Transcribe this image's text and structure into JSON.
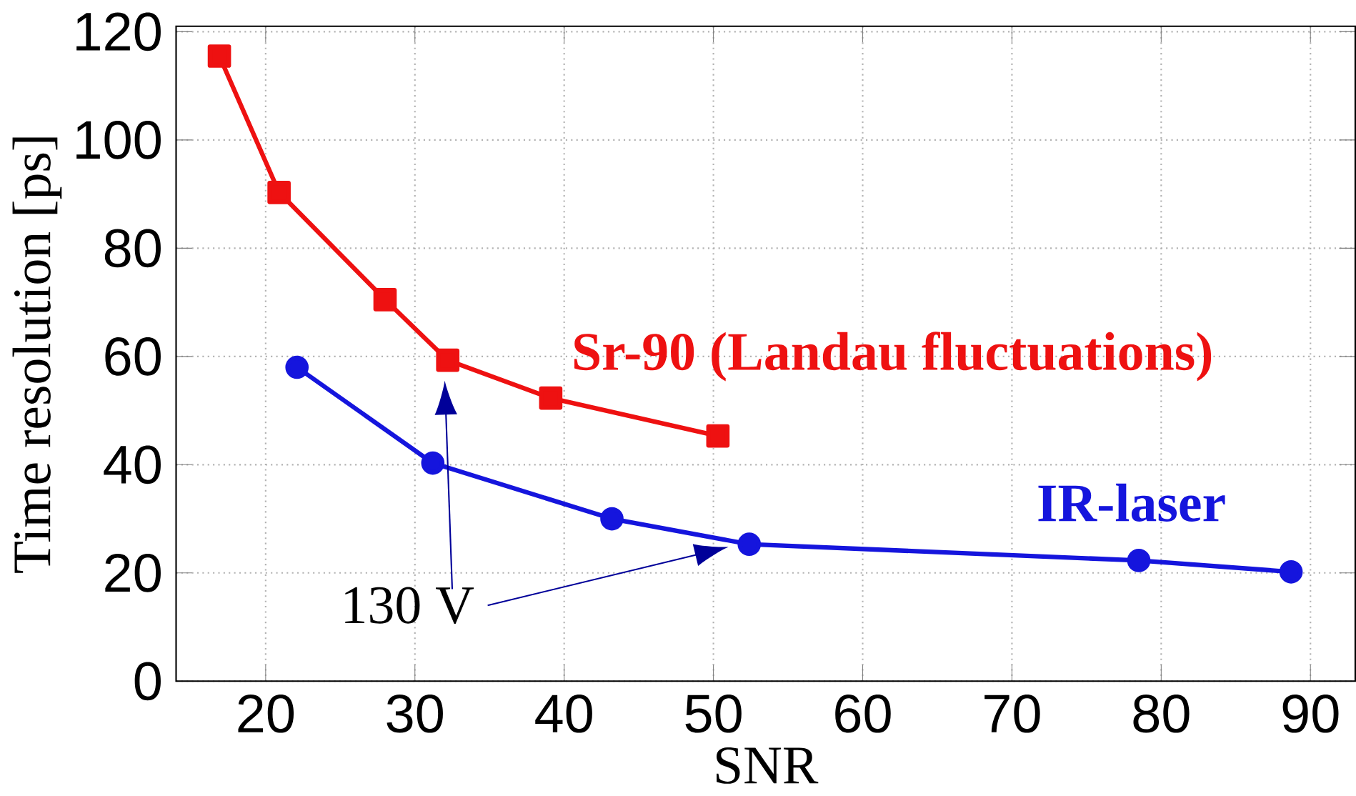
{
  "chart_data": {
    "type": "line",
    "xlabel": "SNR",
    "ylabel": "Time resolution [ps]",
    "xlim": [
      14,
      93
    ],
    "ylim": [
      0,
      121
    ],
    "xticks": [
      20,
      30,
      40,
      50,
      60,
      70,
      80,
      90
    ],
    "yticks": [
      0,
      20,
      40,
      60,
      80,
      100,
      120
    ],
    "grid": true,
    "series": [
      {
        "name": "Sr-90  (Landau fluctuations)",
        "color": "#ee1111",
        "marker": "square",
        "x": [
          16.9,
          20.9,
          28.0,
          32.2,
          39.1,
          50.3
        ],
        "values": [
          115.5,
          90.3,
          70.5,
          59.3,
          52.3,
          45.3
        ]
      },
      {
        "name": "IR-laser",
        "color": "#1515dd",
        "marker": "circle",
        "x": [
          22.1,
          31.2,
          43.2,
          52.4,
          78.5,
          88.7
        ],
        "values": [
          58,
          40.3,
          30,
          25.3,
          22.3,
          20.2
        ]
      }
    ],
    "annotations": [
      "130 V"
    ]
  }
}
